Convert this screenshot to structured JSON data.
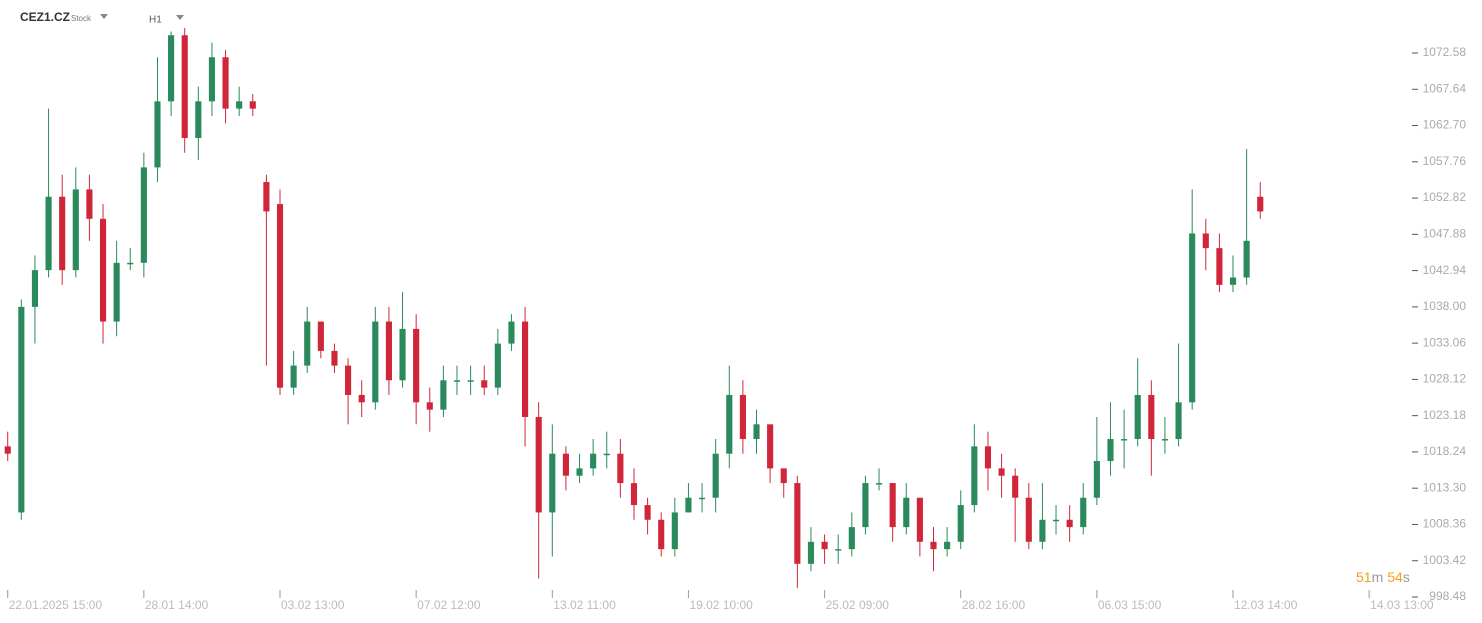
{
  "chart_data": {
    "type": "candlestick",
    "symbol": "CEZ1.CZ",
    "instrument_type": "Stock",
    "timeframe": "H1",
    "countdown": {
      "minutes": 51,
      "minutes_unit": "m",
      "seconds": 54,
      "seconds_unit": "s"
    },
    "up_color": "#2a8a5c",
    "down_color": "#d0263a",
    "open": [
      1019,
      1010,
      1038,
      1043,
      1053,
      1043,
      1054,
      1050,
      1036,
      1044,
      1044,
      1057,
      1066,
      1075,
      1061,
      1066,
      1072,
      1065,
      1066,
      1055,
      1052,
      1027,
      1030,
      1036,
      1032,
      1030,
      1026,
      1025,
      1036,
      1028,
      1035,
      1025,
      1024,
      1028,
      1028,
      1028,
      1027,
      1033,
      1036,
      1023,
      1010,
      1018,
      1015,
      1016,
      1018,
      1018,
      1014,
      1011,
      1009,
      1005,
      1010,
      1012,
      1012,
      1018,
      1026,
      1020,
      1022,
      1016,
      1014,
      1003,
      1006,
      1005,
      1005,
      1008,
      1014,
      1014,
      1008,
      1012,
      1006,
      1005,
      1006,
      1011,
      1019,
      1016,
      1015,
      1012,
      1006,
      1009,
      1009,
      1008,
      1012,
      1017,
      1020,
      1020,
      1026,
      1020,
      1020,
      1025,
      1048,
      1046,
      1041,
      1042,
      1053
    ],
    "high": [
      1021,
      1039,
      1045,
      1065,
      1056,
      1057,
      1056,
      1052,
      1047,
      1046,
      1059,
      1072,
      1075.5,
      1076,
      1068,
      1074,
      1073,
      1068,
      1067,
      1056,
      1054,
      1032,
      1038,
      1036,
      1033,
      1031,
      1028,
      1038,
      1038,
      1040,
      1037,
      1027,
      1030,
      1030,
      1030,
      1030,
      1035,
      1037,
      1038,
      1025,
      1022,
      1019,
      1018,
      1020,
      1021,
      1020,
      1016,
      1012,
      1010,
      1012,
      1014,
      1014,
      1020,
      1030,
      1028,
      1024,
      1022,
      1016,
      1015,
      1008,
      1007,
      1007,
      1010,
      1015,
      1016,
      1014,
      1014,
      1012,
      1008,
      1008,
      1013,
      1022,
      1021,
      1018,
      1016,
      1014,
      1014,
      1011,
      1011,
      1014,
      1023,
      1025,
      1024,
      1031,
      1028,
      1023,
      1033,
      1054,
      1050,
      1048,
      1045,
      1059.5,
      1055
    ],
    "low": [
      1017,
      1009,
      1033,
      1042,
      1041,
      1042,
      1047,
      1033,
      1034,
      1043,
      1042,
      1055,
      1064,
      1059,
      1058,
      1064,
      1063,
      1064,
      1064,
      1030,
      1026,
      1026,
      1029,
      1031,
      1029,
      1022,
      1023,
      1024,
      1026,
      1027,
      1022,
      1021,
      1023,
      1026,
      1026,
      1026,
      1026,
      1032,
      1019,
      1001,
      1004,
      1013,
      1014,
      1015,
      1016,
      1012,
      1009,
      1007,
      1004,
      1004,
      1010,
      1010,
      1010,
      1016,
      1018,
      1018,
      1014,
      1012,
      999.7,
      1002,
      1003,
      1003,
      1004,
      1007,
      1013,
      1006,
      1007,
      1004,
      1002,
      1004,
      1005,
      1010,
      1013,
      1012,
      1006,
      1005,
      1005,
      1007,
      1006,
      1007,
      1011,
      1015,
      1016,
      1019,
      1015,
      1018,
      1019,
      1024,
      1043,
      1040,
      1040,
      1041,
      1050
    ],
    "close": [
      1018,
      1038,
      1043,
      1053,
      1043,
      1054,
      1050,
      1036,
      1044,
      1044,
      1057,
      1066,
      1075,
      1061,
      1066,
      1072,
      1065,
      1066,
      1065,
      1051,
      1027,
      1030,
      1036,
      1032,
      1030,
      1026,
      1025,
      1036,
      1028,
      1035,
      1025,
      1024,
      1028,
      1028,
      1028,
      1027,
      1033,
      1036,
      1023,
      1010,
      1018,
      1015,
      1016,
      1018,
      1018,
      1014,
      1011,
      1009,
      1005,
      1010,
      1012,
      1012,
      1018,
      1026,
      1020,
      1022,
      1016,
      1014,
      1003,
      1006,
      1005,
      1005,
      1008,
      1014,
      1014,
      1008,
      1012,
      1006,
      1005,
      1006,
      1011,
      1019,
      1016,
      1015,
      1012,
      1006,
      1009,
      1009,
      1008,
      1012,
      1017,
      1020,
      1020,
      1026,
      1020,
      1020,
      1025,
      1048,
      1046,
      1041,
      1042,
      1047,
      1051
    ],
    "xlim": [
      -0.2,
      103
    ],
    "xticks": [
      {
        "value": 0,
        "label": "22.01.2025 15:00"
      },
      {
        "value": 10,
        "label": "28.01 14:00"
      },
      {
        "value": 20,
        "label": "03.02 13:00"
      },
      {
        "value": 30,
        "label": "07.02 12:00"
      },
      {
        "value": 40,
        "label": "13.02 11:00"
      },
      {
        "value": 50,
        "label": "19.02 10:00"
      },
      {
        "value": 60,
        "label": "25.02 09:00"
      },
      {
        "value": 70,
        "label": "28.02 16:00"
      },
      {
        "value": 80,
        "label": "06.03 15:00"
      },
      {
        "value": 90,
        "label": "12.03 14:00"
      },
      {
        "value": 100,
        "label": "14.03 13:00"
      }
    ],
    "ylim": [
      998.48,
      1079.8
    ],
    "yticks": [
      998.48,
      1003.42,
      1008.36,
      {
        "value": 1013.3,
        "label": "1013.30"
      },
      1018.24,
      1023.18,
      1028.12,
      1033.06,
      {
        "value": 1038,
        "label": "1038.00"
      },
      1042.94,
      1047.88,
      1052.82,
      1057.76,
      {
        "value": 1062.7,
        "label": "1062.70"
      },
      1067.64,
      1072.58
    ]
  }
}
